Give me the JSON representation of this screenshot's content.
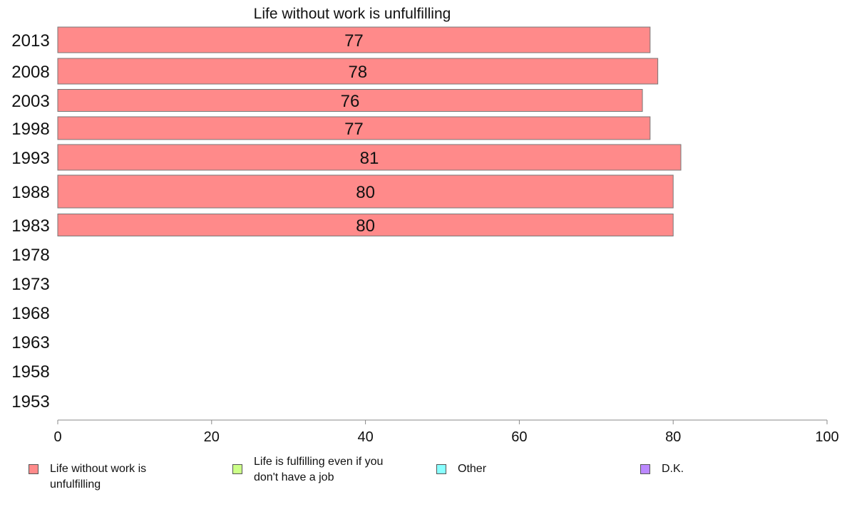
{
  "chart_data": {
    "type": "bar",
    "orientation": "horizontal",
    "title": "Life without work is unfulfilling",
    "categories": [
      "2013",
      "2008",
      "2003",
      "1998",
      "1993",
      "1988",
      "1983",
      "1978",
      "1973",
      "1968",
      "1963",
      "1958",
      "1953"
    ],
    "series": [
      {
        "name": "Life without work is unfulfilling",
        "color": "#ff8a8a",
        "values": [
          77,
          78,
          76,
          77,
          81,
          80,
          80,
          null,
          null,
          null,
          null,
          null,
          null
        ],
        "labels": [
          "77",
          "78",
          "76",
          "77",
          "81",
          "80",
          "80",
          "",
          "",
          "",
          "",
          "",
          ""
        ]
      }
    ],
    "xlim": [
      0,
      100
    ],
    "xticks": [
      "0",
      "20",
      "40",
      "60",
      "80",
      "100"
    ],
    "grid": false,
    "legend_position": "bottom"
  },
  "legend": [
    {
      "label": "Life without work is unfulfilling",
      "color": "#ff8a8a"
    },
    {
      "label": "Life is fulfilling even if you don't have a job",
      "color": "#ccff88"
    },
    {
      "label": "Other",
      "color": "#88ffff"
    },
    {
      "label": "D.K.",
      "color": "#bb88ff"
    }
  ]
}
